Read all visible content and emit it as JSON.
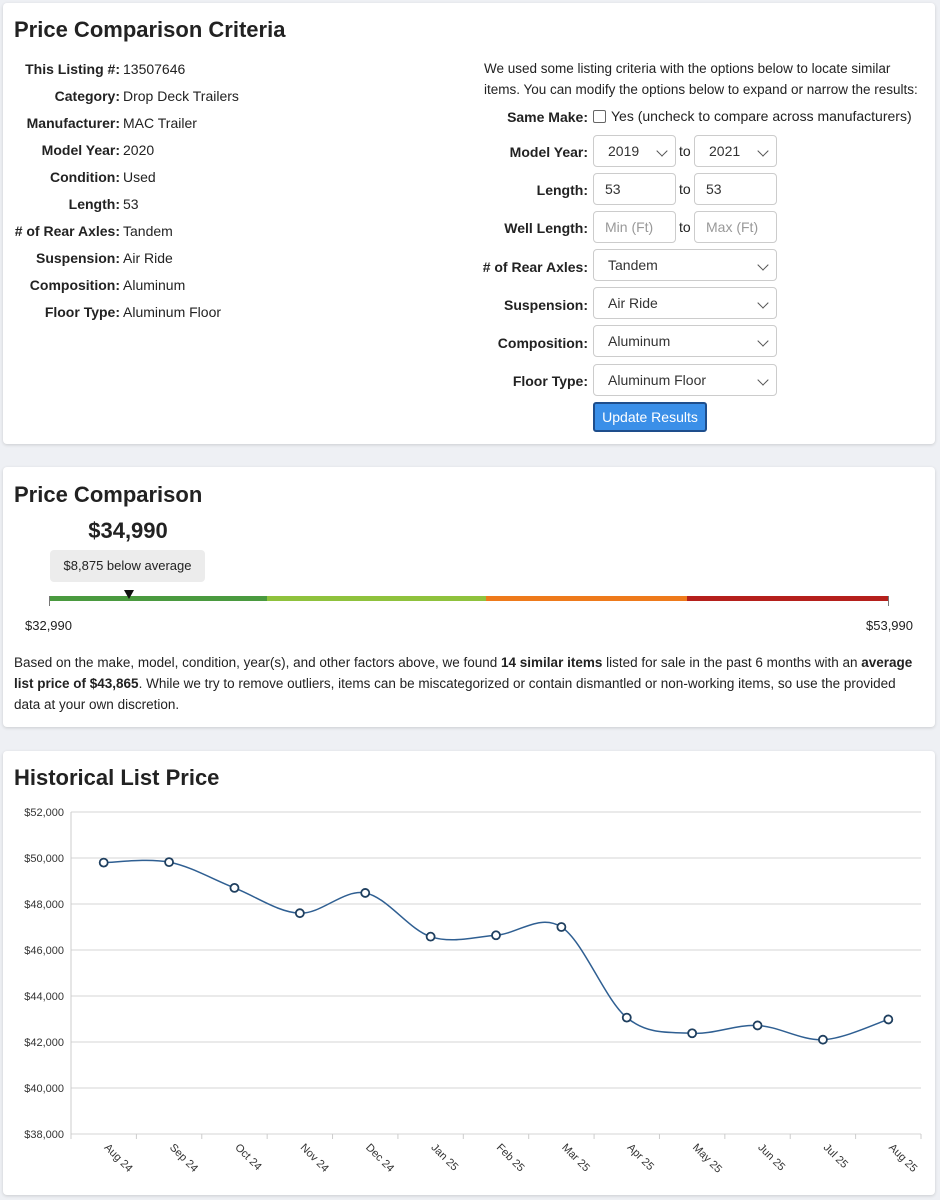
{
  "criteria": {
    "title": "Price Comparison Criteria",
    "specs": [
      {
        "label": "This Listing #:",
        "value": "13507646"
      },
      {
        "label": "Category:",
        "value": "Drop Deck Trailers"
      },
      {
        "label": "Manufacturer:",
        "value": "MAC Trailer"
      },
      {
        "label": "Model Year:",
        "value": "2020"
      },
      {
        "label": "Condition:",
        "value": "Used"
      },
      {
        "label": "Length:",
        "value": "53"
      },
      {
        "label": "# of Rear Axles:",
        "value": "Tandem"
      },
      {
        "label": "Suspension:",
        "value": "Air Ride"
      },
      {
        "label": "Composition:",
        "value": "Aluminum"
      },
      {
        "label": "Floor Type:",
        "value": "Aluminum Floor"
      }
    ],
    "intro": "We used some listing criteria with the options below to locate similar items. You can modify the options below to expand or narrow the results:",
    "form": {
      "same_make_label": "Same Make:",
      "same_make_text": "Yes (uncheck to compare across manufacturers)",
      "model_year_label": "Model Year:",
      "model_year_from": "2019",
      "model_year_to": "2021",
      "length_label": "Length:",
      "length_from": "53",
      "length_to": "53",
      "well_length_label": "Well Length:",
      "well_length_min_placeholder": "Min (Ft)",
      "well_length_max_placeholder": "Max (Ft)",
      "axles_label": "# of Rear Axles:",
      "axles_value": "Tandem",
      "suspension_label": "Suspension:",
      "suspension_value": "Air Ride",
      "composition_label": "Composition:",
      "composition_value": "Aluminum",
      "floor_label": "Floor Type:",
      "floor_value": "Aluminum Floor",
      "to_text": "to",
      "update_button": "Update Results"
    }
  },
  "comparison": {
    "title": "Price Comparison",
    "price": "$34,990",
    "below_avg": "$8,875 below average",
    "min_label": "$32,990",
    "max_label": "$53,990",
    "marker_fraction": 0.095,
    "scale_colors": [
      "#4a9a3f",
      "#8fc23d",
      "#ee7a1b",
      "#b5201c"
    ],
    "text_1": "Based on the make, model, condition, year(s), and other factors above, we found ",
    "text_bold_1": "14 similar items",
    "text_2": " listed for sale in the past 6 months with an ",
    "text_bold_2": "average list price of $43,865",
    "text_3": ". While we try to remove outliers, items can be miscategorized or contain dismantled or non-working items, so use the provided data at your own discretion."
  },
  "history": {
    "title": "Historical List Price"
  },
  "chart_data": {
    "type": "line",
    "categories": [
      "Aug 24",
      "Sep 24",
      "Oct 24",
      "Nov 24",
      "Dec 24",
      "Jan 25",
      "Feb 25",
      "Mar 25",
      "Apr 25",
      "May 25",
      "Jun 25",
      "Jul 25",
      "Aug 25"
    ],
    "series": [
      {
        "values": [
          49800,
          49820,
          48700,
          47600,
          48480,
          46580,
          46640,
          47000,
          43060,
          42380,
          42720,
          42100,
          42980
        ]
      }
    ],
    "yticks": [
      "$52,000",
      "$50,000",
      "$48,000",
      "$46,000",
      "$44,000",
      "$42,000",
      "$40,000",
      "$38,000"
    ],
    "ylim": [
      38000,
      52000
    ],
    "grid": true,
    "line_color": "#2f5f92"
  }
}
